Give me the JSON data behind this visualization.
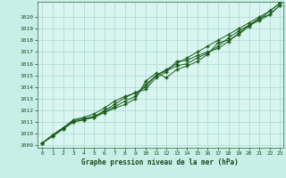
{
  "title": "Graphe pression niveau de la mer (hPa)",
  "xlabel": "Graphe pression niveau de la mer (hPa)",
  "background_color": "#c8eee8",
  "plot_bg_color": "#d8f5f0",
  "grid_color": "#aad8d0",
  "line_color": "#1a5c1a",
  "marker_color": "#1a5c1a",
  "xmin": 0,
  "xmax": 23,
  "ymin": 1009,
  "ymax": 1021,
  "yticks": [
    1009,
    1010,
    1011,
    1012,
    1013,
    1014,
    1015,
    1016,
    1017,
    1018,
    1019,
    1020
  ],
  "xticks": [
    0,
    1,
    2,
    3,
    4,
    5,
    6,
    7,
    8,
    9,
    10,
    11,
    12,
    13,
    14,
    15,
    16,
    17,
    18,
    19,
    20,
    21,
    22,
    23
  ],
  "series": [
    [
      1009.2,
      1009.8,
      1010.4,
      1011.0,
      1011.2,
      1011.4,
      1011.8,
      1012.2,
      1012.5,
      1013.0,
      1014.5,
      1015.2,
      1014.8,
      1015.5,
      1015.8,
      1016.2,
      1016.8,
      1017.8,
      1018.0,
      1018.5,
      1019.2,
      1019.8,
      1020.5,
      1021.2
    ],
    [
      1009.2,
      1009.9,
      1010.5,
      1011.1,
      1011.3,
      1011.5,
      1011.9,
      1012.3,
      1012.8,
      1013.2,
      1014.2,
      1015.0,
      1015.4,
      1015.8,
      1016.0,
      1016.5,
      1016.9,
      1017.5,
      1018.2,
      1018.8,
      1019.3,
      1019.9,
      1020.2,
      1021.0
    ],
    [
      1009.2,
      1009.8,
      1010.4,
      1011.0,
      1011.2,
      1011.4,
      1012.0,
      1012.5,
      1013.1,
      1013.5,
      1013.8,
      1014.8,
      1015.3,
      1016.2,
      1016.3,
      1016.7,
      1017.0,
      1017.3,
      1017.9,
      1018.6,
      1019.3,
      1019.7,
      1020.2,
      1021.0
    ],
    [
      1009.2,
      1009.9,
      1010.5,
      1011.2,
      1011.4,
      1011.7,
      1012.2,
      1012.8,
      1013.2,
      1013.5,
      1014.0,
      1015.0,
      1015.5,
      1016.0,
      1016.5,
      1017.0,
      1017.5,
      1018.0,
      1018.5,
      1019.0,
      1019.5,
      1020.0,
      1020.5,
      1021.2
    ]
  ]
}
